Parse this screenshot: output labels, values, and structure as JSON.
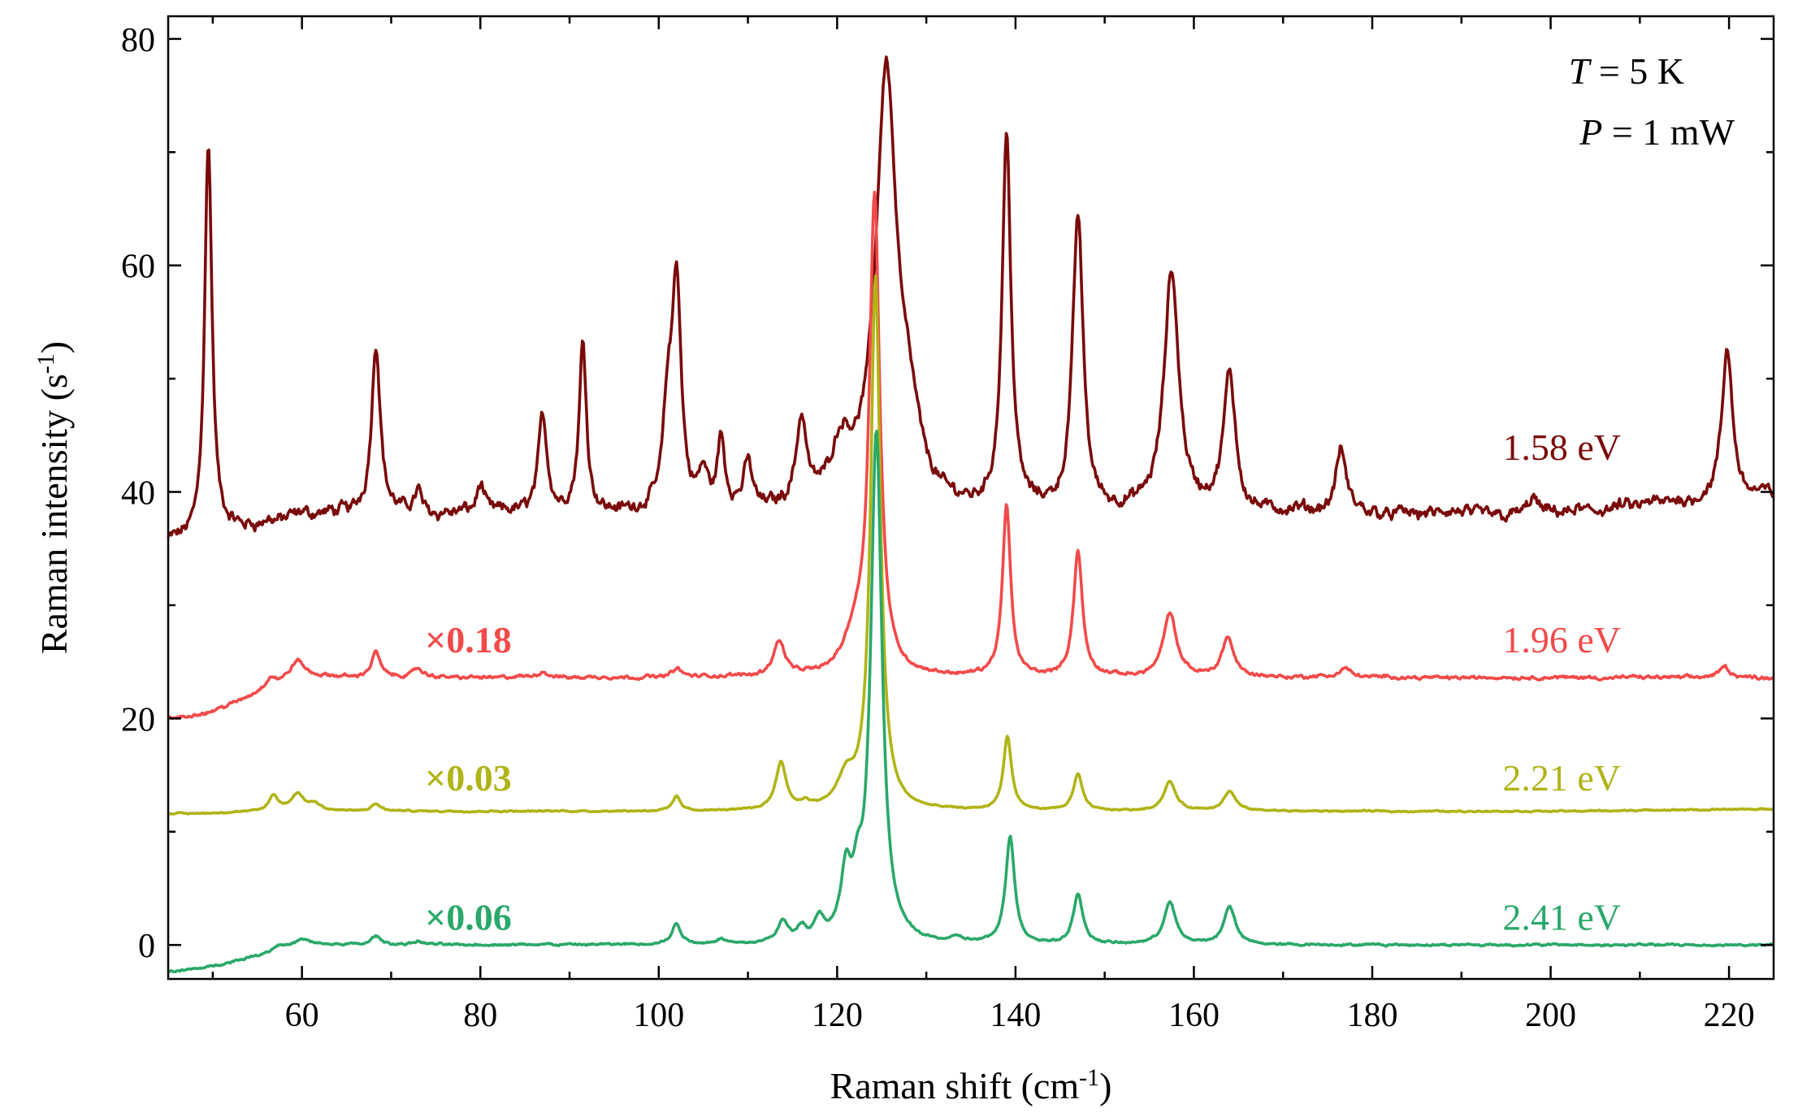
{
  "chart_data": {
    "type": "line",
    "title": "",
    "xlabel": "Raman shift (cm",
    "xlabel_sup": "-1",
    "xlabel_end": ")",
    "ylabel": "Raman intensity (s",
    "ylabel_sup": "-1",
    "ylabel_end": ")",
    "xlim": [
      45,
      225
    ],
    "ylim": [
      -3,
      82
    ],
    "xticks": [
      60,
      80,
      100,
      120,
      140,
      160,
      180,
      200,
      220
    ],
    "yticks": [
      0,
      20,
      40,
      60,
      80
    ],
    "grid": false,
    "annotations": {
      "temperature_var": "T",
      "temperature_rest": " = 5 K",
      "power_var": "P",
      "power_rest": " = 1 mW"
    },
    "series": [
      {
        "name": "1.58 eV",
        "scale": "",
        "color": "#7a0a0a",
        "baseline": 38,
        "baseline_start": 35.5,
        "end_baseline": 39.8,
        "noise": 0.9,
        "label_y": 44,
        "scale_label_y": 0,
        "peaks": [
          {
            "x": 49.5,
            "h": 35,
            "w": 0.5
          },
          {
            "x": 68.3,
            "h": 15,
            "w": 0.6
          },
          {
            "x": 73,
            "h": 2,
            "w": 0.5
          },
          {
            "x": 80,
            "h": 2.5,
            "w": 0.5
          },
          {
            "x": 87,
            "h": 8.5,
            "w": 0.6
          },
          {
            "x": 91.5,
            "h": 15,
            "w": 0.5
          },
          {
            "x": 101,
            "h": 8,
            "w": 0.6
          },
          {
            "x": 102,
            "h": 20,
            "w": 0.6
          },
          {
            "x": 105,
            "h": 3,
            "w": 0.6
          },
          {
            "x": 107,
            "h": 6,
            "w": 0.5
          },
          {
            "x": 110,
            "h": 4,
            "w": 0.6
          },
          {
            "x": 116,
            "h": 7.5,
            "w": 0.7
          },
          {
            "x": 120.5,
            "h": 5,
            "w": 1.5
          },
          {
            "x": 125.5,
            "h": 38,
            "w": 1.4
          },
          {
            "x": 128,
            "h": 6,
            "w": 1.5
          },
          {
            "x": 139,
            "h": 33,
            "w": 0.6
          },
          {
            "x": 147,
            "h": 26,
            "w": 0.7
          },
          {
            "x": 157.5,
            "h": 21,
            "w": 1.0
          },
          {
            "x": 164,
            "h": 12,
            "w": 0.8
          },
          {
            "x": 176.5,
            "h": 5.5,
            "w": 0.7
          },
          {
            "x": 198,
            "h": 1.5,
            "w": 0.6
          },
          {
            "x": 219.8,
            "h": 13,
            "w": 0.7
          }
        ]
      },
      {
        "name": "1.96 eV",
        "scale": "×0.18",
        "color": "#f24a4a",
        "baseline": 23.6,
        "baseline_start": 20,
        "end_baseline": 23.6,
        "noise": 0.25,
        "label_y": 27,
        "scale_label_y": 27,
        "peaks": [
          {
            "x": 56.5,
            "h": 1,
            "w": 0.8
          },
          {
            "x": 59.5,
            "h": 1.8,
            "w": 1.0
          },
          {
            "x": 68.3,
            "h": 2.2,
            "w": 0.6
          },
          {
            "x": 73,
            "h": 0.8,
            "w": 0.6
          },
          {
            "x": 87,
            "h": 0.5,
            "w": 0.6
          },
          {
            "x": 102,
            "h": 0.8,
            "w": 0.6
          },
          {
            "x": 113.5,
            "h": 3,
            "w": 0.8
          },
          {
            "x": 122,
            "h": 3,
            "w": 1.5
          },
          {
            "x": 124.2,
            "h": 42,
            "w": 0.7
          },
          {
            "x": 139,
            "h": 15,
            "w": 0.55
          },
          {
            "x": 147,
            "h": 11,
            "w": 0.6
          },
          {
            "x": 157.3,
            "h": 5.5,
            "w": 0.9
          },
          {
            "x": 163.8,
            "h": 3.5,
            "w": 0.8
          },
          {
            "x": 177,
            "h": 0.8,
            "w": 0.8
          },
          {
            "x": 219.5,
            "h": 1.0,
            "w": 0.7
          }
        ]
      },
      {
        "name": "2.21 eV",
        "scale": "×0.03",
        "color": "#b0b416",
        "baseline": 11.8,
        "baseline_start": 11.6,
        "end_baseline": 12.0,
        "noise": 0.1,
        "label_y": 14.8,
        "scale_label_y": 14.8,
        "peaks": [
          {
            "x": 56.8,
            "h": 1.4,
            "w": 0.6
          },
          {
            "x": 59.5,
            "h": 1.5,
            "w": 0.9
          },
          {
            "x": 61.5,
            "h": 0.6,
            "w": 0.8
          },
          {
            "x": 68.3,
            "h": 0.6,
            "w": 0.6
          },
          {
            "x": 102,
            "h": 1.3,
            "w": 0.5
          },
          {
            "x": 113.7,
            "h": 4.2,
            "w": 0.7
          },
          {
            "x": 116.5,
            "h": 0.5,
            "w": 0.6
          },
          {
            "x": 121,
            "h": 2.5,
            "w": 1.2
          },
          {
            "x": 124.3,
            "h": 47,
            "w": 0.65
          },
          {
            "x": 139.1,
            "h": 6.5,
            "w": 0.55
          },
          {
            "x": 147,
            "h": 3.2,
            "w": 0.6
          },
          {
            "x": 157.3,
            "h": 2.6,
            "w": 0.8
          },
          {
            "x": 164,
            "h": 1.7,
            "w": 0.8
          }
        ]
      },
      {
        "name": "2.41 eV",
        "scale": "×0.06",
        "color": "#2aa86a",
        "baseline": 0,
        "baseline_start": -2.3,
        "end_baseline": 0,
        "noise": 0.15,
        "label_y": 2.5,
        "scale_label_y": 2.5,
        "peaks": [
          {
            "x": 57.5,
            "h": 0.5,
            "w": 0.8
          },
          {
            "x": 60,
            "h": 0.6,
            "w": 1.0
          },
          {
            "x": 68.3,
            "h": 0.8,
            "w": 0.6
          },
          {
            "x": 73,
            "h": 0.3,
            "w": 0.8
          },
          {
            "x": 102,
            "h": 1.8,
            "w": 0.6
          },
          {
            "x": 107,
            "h": 0.4,
            "w": 0.8
          },
          {
            "x": 113.9,
            "h": 1.8,
            "w": 0.7
          },
          {
            "x": 116,
            "h": 1.2,
            "w": 0.6
          },
          {
            "x": 118,
            "h": 1.8,
            "w": 0.7
          },
          {
            "x": 121,
            "h": 5.5,
            "w": 0.7
          },
          {
            "x": 122.3,
            "h": 3.5,
            "w": 0.6
          },
          {
            "x": 124.4,
            "h": 45,
            "w": 0.75
          },
          {
            "x": 133.5,
            "h": 0.4,
            "w": 0.7
          },
          {
            "x": 139.4,
            "h": 9.5,
            "w": 0.6
          },
          {
            "x": 147,
            "h": 4.3,
            "w": 0.65
          },
          {
            "x": 157.3,
            "h": 3.7,
            "w": 0.8
          },
          {
            "x": 164,
            "h": 3.4,
            "w": 0.75
          }
        ]
      }
    ]
  }
}
